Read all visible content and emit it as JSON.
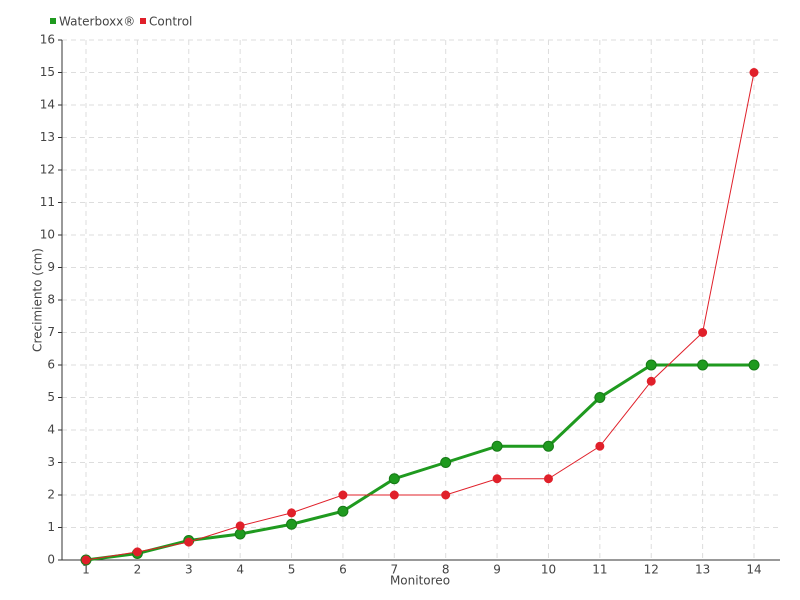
{
  "chart_data": {
    "type": "line",
    "categories": [
      "1",
      "2",
      "3",
      "4",
      "5",
      "6",
      "7",
      "8",
      "9",
      "10",
      "11",
      "12",
      "13",
      "14"
    ],
    "series": [
      {
        "name": "Waterboxx®",
        "color": "#1f9a1f",
        "values": [
          0,
          0.2,
          0.6,
          0.8,
          1.1,
          1.5,
          2.5,
          3,
          3.5,
          3.5,
          5,
          6,
          6,
          6
        ]
      },
      {
        "name": "Control",
        "color": "#e0202a",
        "values": [
          0,
          0.25,
          0.55,
          1.05,
          1.45,
          2,
          2,
          2,
          2.5,
          2.5,
          3.5,
          5.5,
          7,
          15
        ]
      }
    ],
    "xlabel": "Monitoreo",
    "ylabel": "Crecimiento (cm)",
    "ylim": [
      0,
      16
    ],
    "yticks": [
      0,
      1,
      2,
      3,
      4,
      5,
      6,
      7,
      8,
      9,
      10,
      11,
      12,
      13,
      14,
      15,
      16
    ],
    "grid": true
  }
}
